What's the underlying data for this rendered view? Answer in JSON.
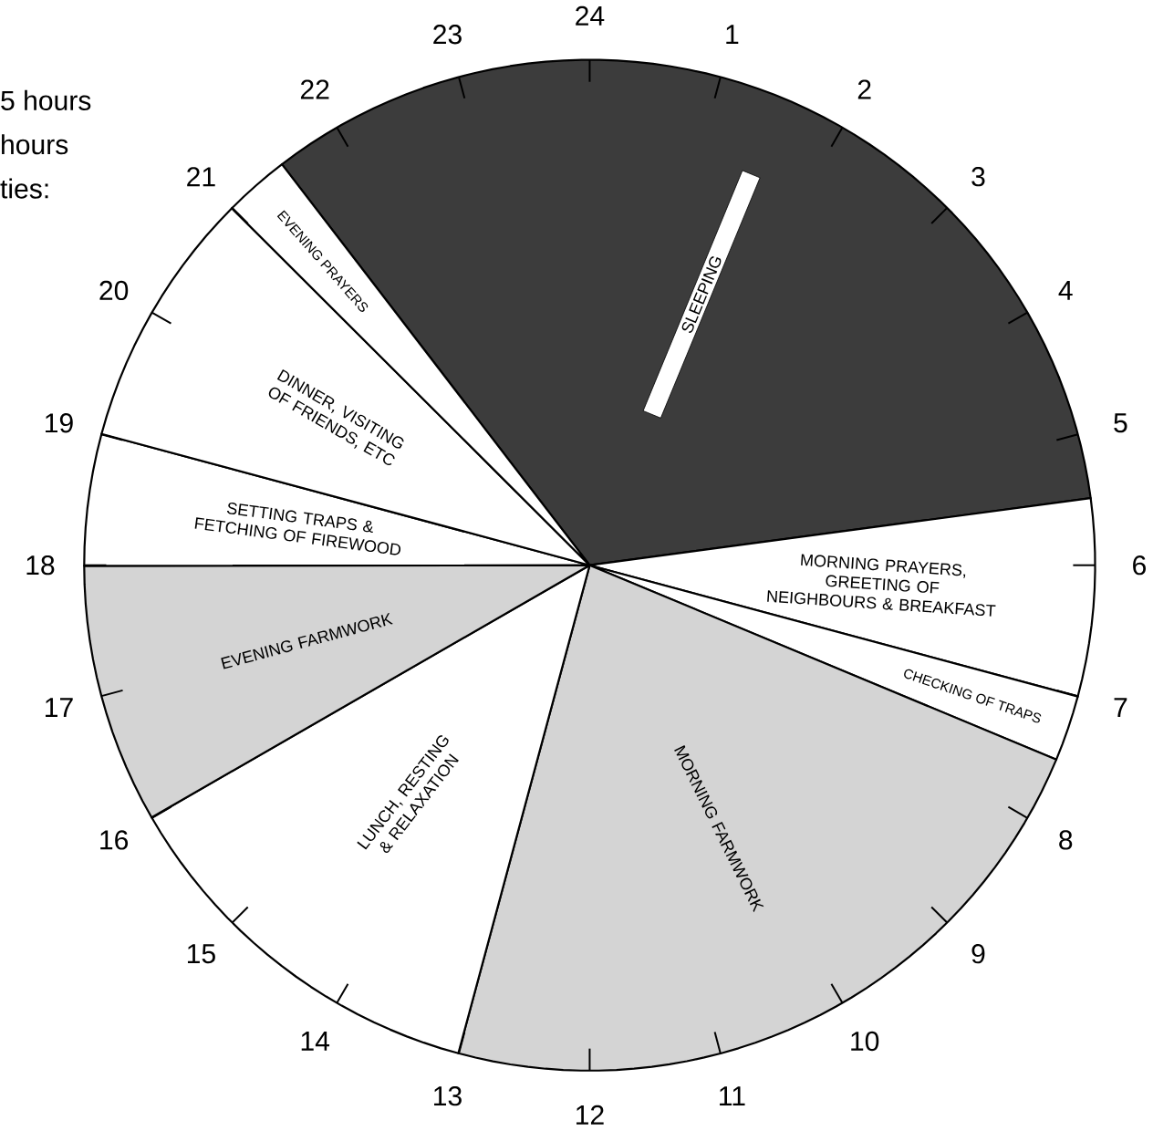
{
  "chart_data": {
    "type": "pie",
    "categories": [
      "SLEEPING",
      "MORNING PRAYERS, GREETING OF NEIGHBOURS & BREAKFAST",
      "CHECKING OF TRAPS",
      "MORNING FARMWORK",
      "LUNCH, RESTING & RELAXATION",
      "EVENING FARMWORK",
      "SETTING TRAPS & FETCHING OF FIREWOOD",
      "DINNER, VISITING OF FRIENDS, ETC",
      "EVENING PRAYERS"
    ],
    "values": [
      33.3,
      6.3,
      2.1,
      22.9,
      12.5,
      8.3,
      4.2,
      8.3,
      2.1
    ],
    "colors": [
      "#3c3c3c",
      "#ffffff",
      "#ffffff",
      "#d4d4d4",
      "#ffffff",
      "#d4d4d4",
      "#ffffff",
      "#ffffff",
      "#ffffff"
    ],
    "annotations": [
      "5 hours",
      "hours",
      "ties:",
      "1",
      "2",
      "3",
      "4",
      "5",
      "6",
      "7",
      "8",
      "9",
      "10",
      "11",
      "12",
      "13",
      "14",
      "15",
      "16",
      "17",
      "18",
      "19",
      "20",
      "21",
      "22",
      "23",
      "24"
    ]
  }
}
